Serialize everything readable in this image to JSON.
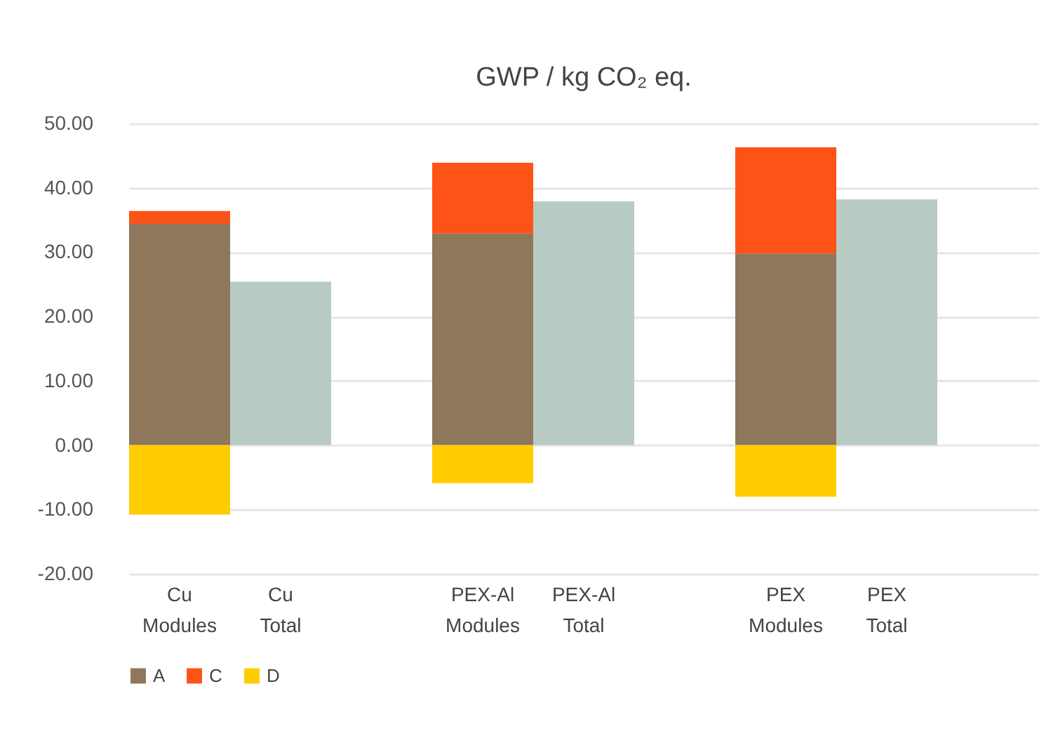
{
  "chart_data": {
    "type": "bar",
    "title": "GWP / kg CO₂ eq.",
    "stacked": true,
    "categories": [
      "Cu Modules",
      "Cu Total",
      null,
      "PEX-Al Modules",
      "PEX-Al Total",
      null,
      "PEX Modules",
      "PEX Total",
      null
    ],
    "series": [
      {
        "name": "A",
        "color": "#8e775a",
        "values": [
          34.4,
          null,
          null,
          32.9,
          null,
          null,
          29.8,
          null,
          null
        ]
      },
      {
        "name": "C",
        "color": "#fe5316",
        "values": [
          2.0,
          null,
          null,
          11.0,
          null,
          null,
          16.5,
          null,
          null
        ]
      },
      {
        "name": "D",
        "color": "#ffcc00",
        "values": [
          -10.8,
          null,
          null,
          -5.9,
          null,
          null,
          -8.0,
          null,
          null
        ]
      },
      {
        "color": "#b8cbc3",
        "values": [
          null,
          25.4,
          null,
          null,
          37.9,
          null,
          null,
          38.2,
          null
        ]
      }
    ],
    "ylim": [
      -20,
      50
    ],
    "yticks": [
      {
        "value": -20,
        "label": "-20.00"
      },
      {
        "value": -10,
        "label": "-10.00"
      },
      {
        "value": 0,
        "label": "0.00"
      },
      {
        "value": 10,
        "label": "10.00"
      },
      {
        "value": 20,
        "label": "20.00"
      },
      {
        "value": 30,
        "label": "30.00"
      },
      {
        "value": 40,
        "label": "40.00"
      },
      {
        "value": 50,
        "label": "50.00"
      }
    ],
    "grid": "y",
    "legend": "bottom"
  }
}
